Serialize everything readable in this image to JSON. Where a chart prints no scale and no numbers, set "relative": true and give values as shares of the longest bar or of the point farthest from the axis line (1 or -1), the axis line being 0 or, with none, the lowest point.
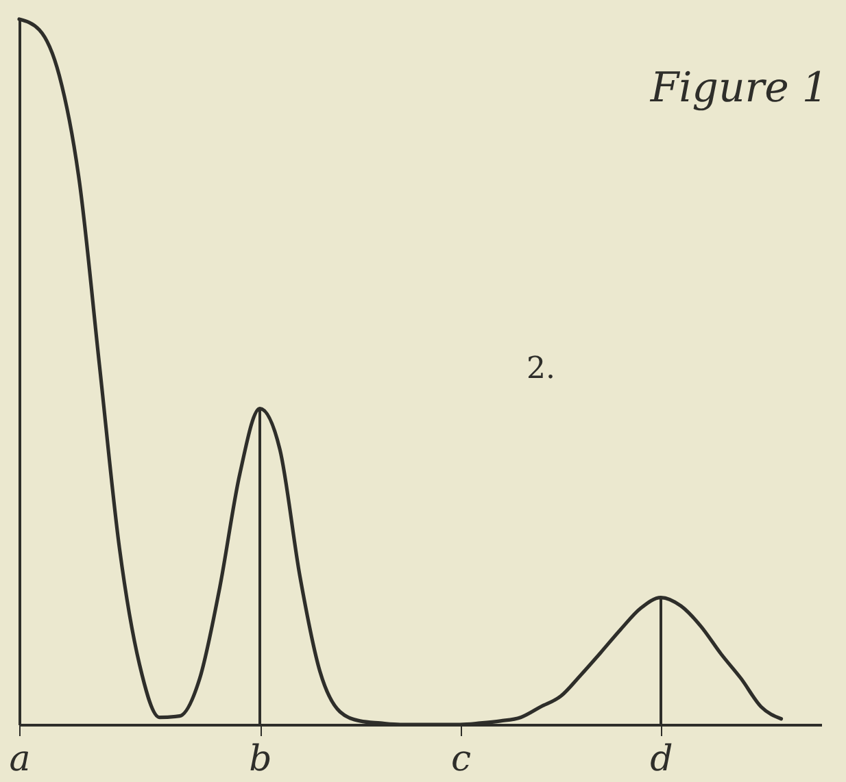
{
  "chart_data": {
    "type": "line",
    "title": "Figure 1",
    "relative": true,
    "categories": [
      "a",
      null,
      null,
      null,
      null,
      null,
      null,
      null,
      null,
      null,
      null,
      null,
      "b",
      null,
      null,
      null,
      null,
      null,
      null,
      null,
      null,
      null,
      "c",
      null,
      null,
      null,
      null,
      null,
      null,
      null,
      null,
      null,
      "d",
      null,
      null,
      null,
      null,
      null,
      null,
      null,
      null
    ],
    "series": [
      {
        "color": "#2e2e2a",
        "values": [
          1,
          0.985,
          0.92,
          0.77,
          0.51,
          0.25,
          0.085,
          0.01,
          0.012,
          0.065,
          0.194,
          0.355,
          0.448,
          0.39,
          0.21,
          0.075,
          0.018,
          0.005,
          0.002,
          0,
          0,
          0,
          0,
          0.002,
          0.005,
          0.01,
          0.025,
          0.04,
          0.07,
          0.102,
          0.135,
          0.165,
          0.18,
          0.168,
          0.139,
          0.1,
          0.065,
          0.025,
          0.008,
          null,
          null
        ]
      }
    ],
    "ref_lines": [
      {
        "axis": "x",
        "value": "b",
        "color": "#2e2e2a"
      },
      {
        "axis": "x",
        "value": "d",
        "color": "#2e2e2a"
      }
    ],
    "annotations": [
      "2."
    ],
    "grid": false,
    "marker": "none",
    "line_style": "solid"
  }
}
